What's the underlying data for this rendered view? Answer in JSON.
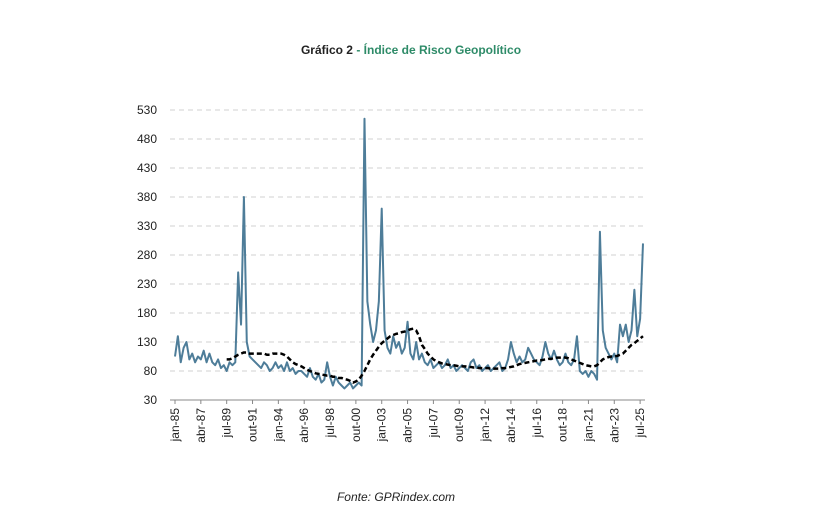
{
  "chart_data": {
    "type": "line",
    "title": "Gráfico 2",
    "title_highlight": "- Índice de Risco Geopolítico",
    "title_highlight_color": "#2e8b68",
    "source": "Fonte: GPRindex.com",
    "categories": [
      "jan-85",
      null,
      null,
      null,
      null,
      null,
      null,
      null,
      null,
      "abr-87",
      null,
      null,
      null,
      null,
      null,
      null,
      null,
      null,
      "jul-89",
      null,
      null,
      null,
      null,
      null,
      null,
      null,
      null,
      "out-91",
      null,
      null,
      null,
      null,
      null,
      null,
      null,
      null,
      "jan-94",
      null,
      null,
      null,
      null,
      null,
      null,
      null,
      null,
      "abr-96",
      null,
      null,
      null,
      null,
      null,
      null,
      null,
      null,
      "jul-98",
      null,
      null,
      null,
      null,
      null,
      null,
      null,
      null,
      "out-00",
      null,
      null,
      null,
      null,
      null,
      null,
      null,
      null,
      "jan-03",
      null,
      null,
      null,
      null,
      null,
      null,
      null,
      null,
      "abr-05",
      null,
      null,
      null,
      null,
      null,
      null,
      null,
      null,
      "jul-07",
      null,
      null,
      null,
      null,
      null,
      null,
      null,
      null,
      "out-09",
      null,
      null,
      null,
      null,
      null,
      null,
      null,
      null,
      "jan-12",
      null,
      null,
      null,
      null,
      null,
      null,
      null,
      null,
      "abr-14",
      null,
      null,
      null,
      null,
      null,
      null,
      null,
      null,
      "jul-16",
      null,
      null,
      null,
      null,
      null,
      null,
      null,
      null,
      "out-18",
      null,
      null,
      null,
      null,
      null,
      null,
      null,
      null,
      "jan-21",
      null,
      null,
      null,
      null,
      null,
      null,
      null,
      null,
      "abr-23",
      null,
      null,
      null,
      null,
      null,
      null,
      null,
      null,
      "jul-25",
      null
    ],
    "series": [
      {
        "color": "#4e7d99",
        "dashed": false,
        "values": [
          105,
          140,
          95,
          120,
          130,
          100,
          110,
          95,
          105,
          100,
          115,
          95,
          110,
          95,
          90,
          100,
          85,
          90,
          80,
          95,
          90,
          95,
          250,
          160,
          380,
          130,
          105,
          100,
          95,
          90,
          85,
          95,
          90,
          80,
          85,
          95,
          85,
          90,
          80,
          95,
          80,
          85,
          75,
          80,
          80,
          75,
          70,
          85,
          70,
          65,
          75,
          60,
          65,
          95,
          70,
          55,
          70,
          60,
          55,
          50,
          55,
          60,
          50,
          55,
          60,
          55,
          515,
          200,
          160,
          130,
          150,
          200,
          360,
          150,
          120,
          110,
          140,
          120,
          130,
          110,
          120,
          165,
          110,
          100,
          130,
          100,
          110,
          95,
          90,
          100,
          85,
          90,
          95,
          85,
          90,
          100,
          85,
          90,
          80,
          85,
          90,
          85,
          80,
          95,
          100,
          85,
          90,
          80,
          85,
          90,
          80,
          85,
          90,
          95,
          80,
          85,
          100,
          130,
          110,
          95,
          105,
          95,
          100,
          120,
          110,
          100,
          95,
          90,
          105,
          130,
          110,
          100,
          115,
          100,
          90,
          95,
          110,
          95,
          90,
          100,
          140,
          80,
          75,
          80,
          70,
          80,
          75,
          65,
          320,
          150,
          120,
          110,
          100,
          110,
          95,
          160,
          140,
          160,
          130,
          150,
          220,
          140,
          170,
          300
        ]
      },
      {
        "color": "#000000",
        "dashed": true,
        "values": [
          null,
          null,
          null,
          null,
          null,
          null,
          null,
          null,
          null,
          null,
          null,
          null,
          null,
          null,
          null,
          null,
          null,
          null,
          100,
          100,
          102,
          105,
          108,
          110,
          112,
          112,
          110,
          110,
          110,
          110,
          110,
          110,
          108,
          108,
          110,
          110,
          110,
          110,
          108,
          105,
          100,
          95,
          92,
          90,
          88,
          85,
          82,
          80,
          78,
          76,
          75,
          74,
          73,
          72,
          72,
          70,
          70,
          68,
          68,
          66,
          65,
          63,
          60,
          62,
          65,
          72,
          80,
          90,
          100,
          108,
          115,
          122,
          128,
          132,
          136,
          140,
          142,
          144,
          145,
          147,
          148,
          150,
          152,
          153,
          150,
          140,
          125,
          118,
          110,
          105,
          100,
          97,
          95,
          93,
          92,
          91,
          90,
          90,
          89,
          88,
          88,
          88,
          87,
          87,
          86,
          86,
          85,
          85,
          85,
          85,
          84,
          84,
          84,
          84,
          85,
          85,
          86,
          87,
          88,
          90,
          92,
          93,
          94,
          95,
          96,
          97,
          98,
          98,
          99,
          100,
          101,
          101,
          102,
          103,
          103,
          104,
          103,
          102,
          100,
          98,
          96,
          94,
          92,
          90,
          89,
          88,
          88,
          90,
          95,
          100,
          102,
          104,
          105,
          105,
          106,
          108,
          110,
          115,
          120,
          125,
          128,
          132,
          136,
          140
        ]
      }
    ],
    "ylim": [
      30,
      530
    ],
    "yticks": [
      30,
      80,
      130,
      180,
      230,
      280,
      330,
      380,
      430,
      480,
      530
    ],
    "grid": true
  }
}
